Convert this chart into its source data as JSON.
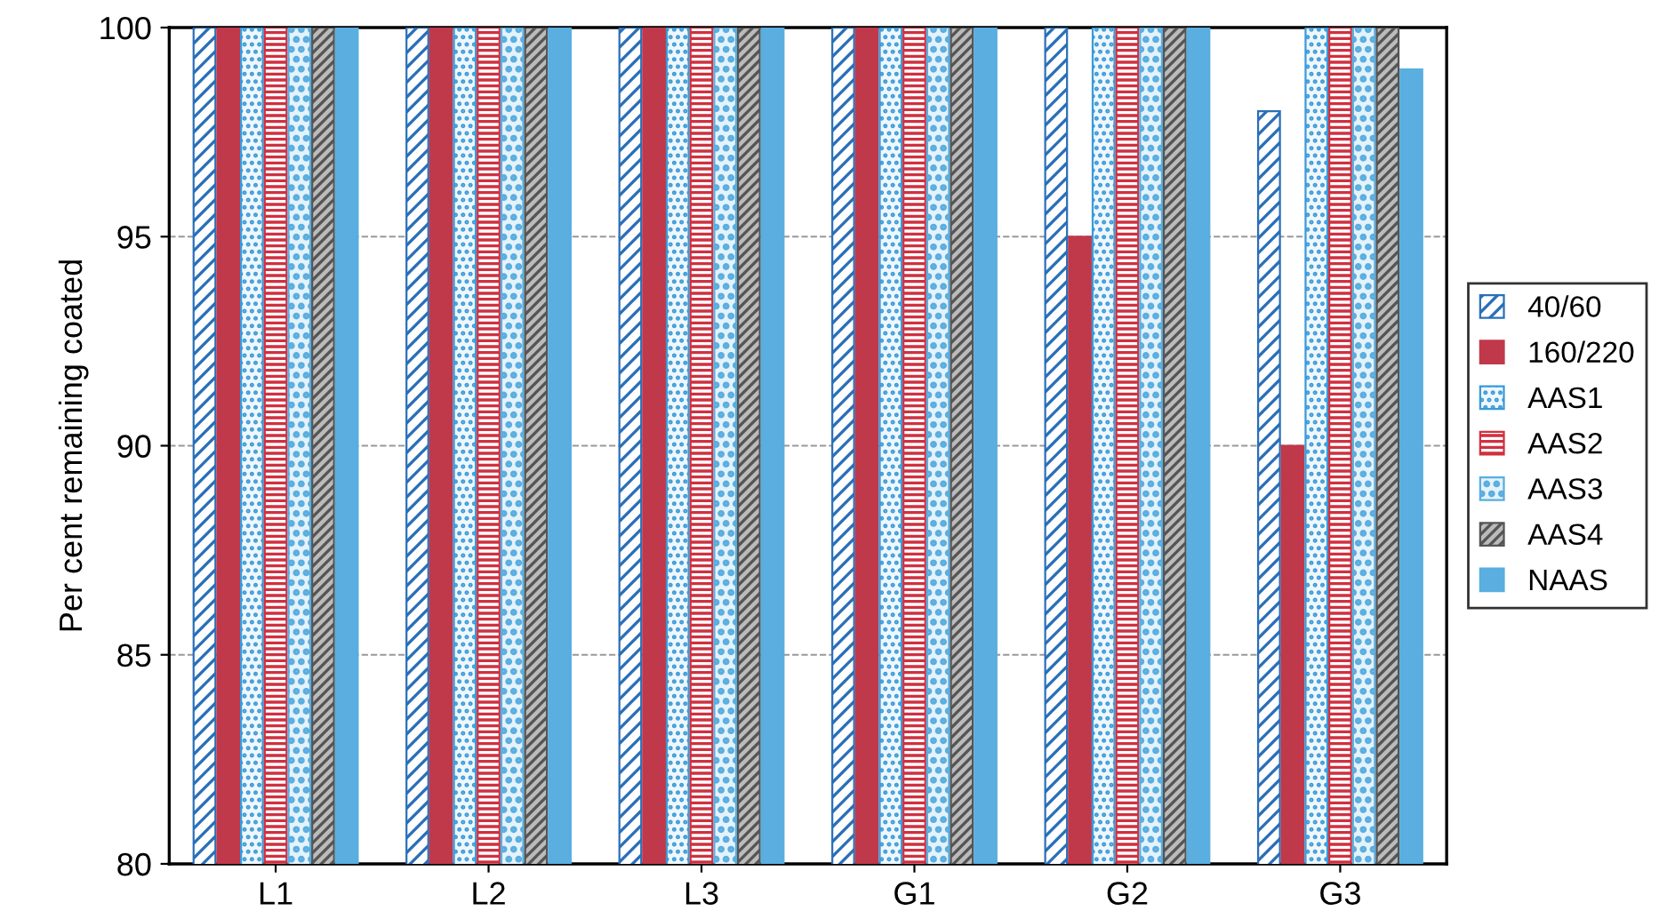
{
  "chart_data": {
    "type": "bar",
    "ylabel": "Per cent remaining coated",
    "categories": [
      "L1",
      "L2",
      "L3",
      "G1",
      "G2",
      "G3"
    ],
    "series": [
      {
        "name": "40/60",
        "color": "#2a6fb8",
        "values": [
          100,
          100,
          100,
          100,
          100,
          98
        ]
      },
      {
        "name": "160/220",
        "color": "#c0394b",
        "values": [
          100,
          100,
          100,
          100,
          95,
          90
        ]
      },
      {
        "name": "AAS1",
        "color": "#3a9ad9",
        "values": [
          100,
          100,
          100,
          100,
          100,
          100
        ]
      },
      {
        "name": "AAS2",
        "color": "#d0303f",
        "values": [
          100,
          100,
          100,
          100,
          100,
          100
        ]
      },
      {
        "name": "AAS3",
        "color": "#5aaee0",
        "values": [
          100,
          100,
          100,
          100,
          100,
          100
        ]
      },
      {
        "name": "AAS4",
        "color": "#555555",
        "values": [
          100,
          100,
          100,
          100,
          100,
          100
        ]
      },
      {
        "name": "NAAS",
        "color": "#5aaee0",
        "values": [
          100,
          100,
          100,
          100,
          100,
          99
        ]
      }
    ],
    "ylim": [
      80,
      100
    ],
    "yticks": [
      80,
      85,
      90,
      95,
      100
    ],
    "grid": "y",
    "legend": "right"
  }
}
